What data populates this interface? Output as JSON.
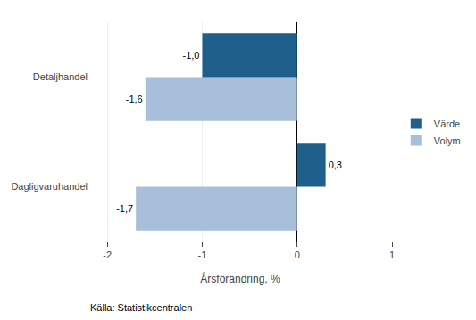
{
  "chart_data": {
    "type": "bar",
    "orientation": "horizontal",
    "categories": [
      "Dagligvaruhandel",
      "Detaljhandel"
    ],
    "series": [
      {
        "name": "Värde",
        "color": "#1F5F8B",
        "values": [
          0.3,
          -1.0
        ],
        "value_labels": [
          "0,3",
          "-1,0"
        ]
      },
      {
        "name": "Volym",
        "color": "#A8BFDB",
        "values": [
          -1.7,
          -1.6
        ],
        "value_labels": [
          "-1,7",
          "-1,6"
        ]
      }
    ],
    "xlabel": "Årsförändring, %",
    "xlim": [
      -2.2,
      1.0
    ],
    "xticks": [
      -2,
      -1,
      0,
      1
    ],
    "data_labels": true,
    "grid": true,
    "legend": "right",
    "annotations": [
      "Källa: Statistikcentralen"
    ]
  }
}
